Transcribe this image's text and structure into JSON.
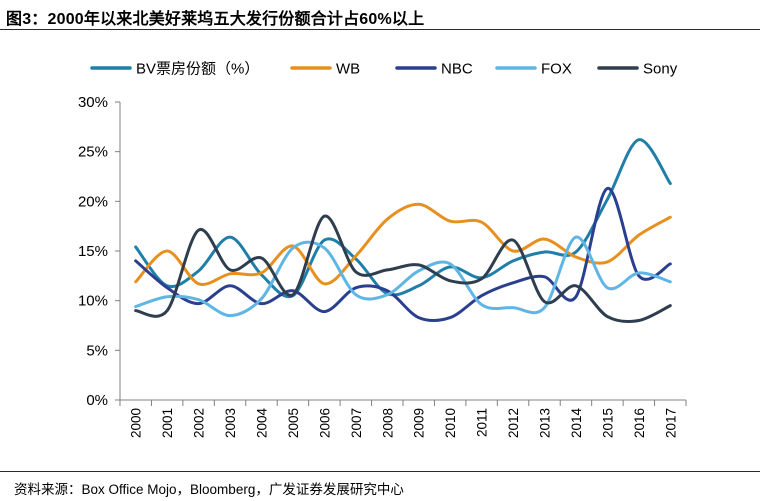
{
  "header": {
    "title": "图3：2000年以来北美好莱坞五大发行份额合计占60%以上"
  },
  "footer": {
    "source": "资料来源：Box Office Mojo，Bloomberg，广发证券发展研究中心"
  },
  "chart_data": {
    "type": "line",
    "title": "",
    "xlabel": "",
    "ylabel": "",
    "x": [
      "2000",
      "2001",
      "2002",
      "2003",
      "2004",
      "2005",
      "2006",
      "2007",
      "2008",
      "2009",
      "2010",
      "2011",
      "2012",
      "2013",
      "2014",
      "2015",
      "2016",
      "2017"
    ],
    "ylim": [
      0,
      30
    ],
    "yticks": [
      "0%",
      "5%",
      "10%",
      "15%",
      "20%",
      "25%",
      "30%"
    ],
    "legend_position": "top",
    "grid": false,
    "series": [
      {
        "name": "BV票房份额（%）",
        "color": "#1f7fa8",
        "values": [
          15.4,
          11.5,
          13.0,
          16.4,
          12.6,
          10.5,
          16.1,
          14.2,
          10.7,
          11.5,
          13.4,
          12.3,
          14.0,
          14.9,
          14.9,
          20.2,
          26.2,
          21.8
        ]
      },
      {
        "name": "WB",
        "color": "#e8901f",
        "values": [
          11.9,
          15.0,
          11.7,
          12.7,
          12.8,
          15.5,
          11.7,
          14.5,
          18.2,
          19.7,
          18.0,
          17.9,
          15.0,
          16.2,
          14.4,
          13.9,
          16.6,
          18.4
        ]
      },
      {
        "name": "NBC",
        "color": "#2b3f8f",
        "values": [
          14.0,
          11.3,
          9.7,
          11.5,
          9.7,
          11.0,
          8.9,
          11.3,
          11.0,
          8.3,
          8.3,
          10.5,
          11.8,
          12.4,
          10.4,
          21.3,
          12.5,
          13.7
        ]
      },
      {
        "name": "FOX",
        "color": "#5fb6e4",
        "values": [
          9.4,
          10.4,
          10.1,
          8.5,
          10.2,
          15.3,
          15.3,
          10.6,
          10.6,
          13.0,
          13.7,
          9.6,
          9.3,
          9.3,
          16.4,
          11.3,
          12.8,
          11.9
        ]
      },
      {
        "name": "Sony",
        "color": "#2e3e4e",
        "values": [
          9.0,
          9.0,
          17.1,
          13.1,
          14.3,
          10.6,
          18.5,
          12.9,
          13.1,
          13.6,
          12.0,
          12.2,
          16.1,
          9.9,
          11.5,
          8.4,
          8.0,
          9.5
        ]
      }
    ]
  }
}
